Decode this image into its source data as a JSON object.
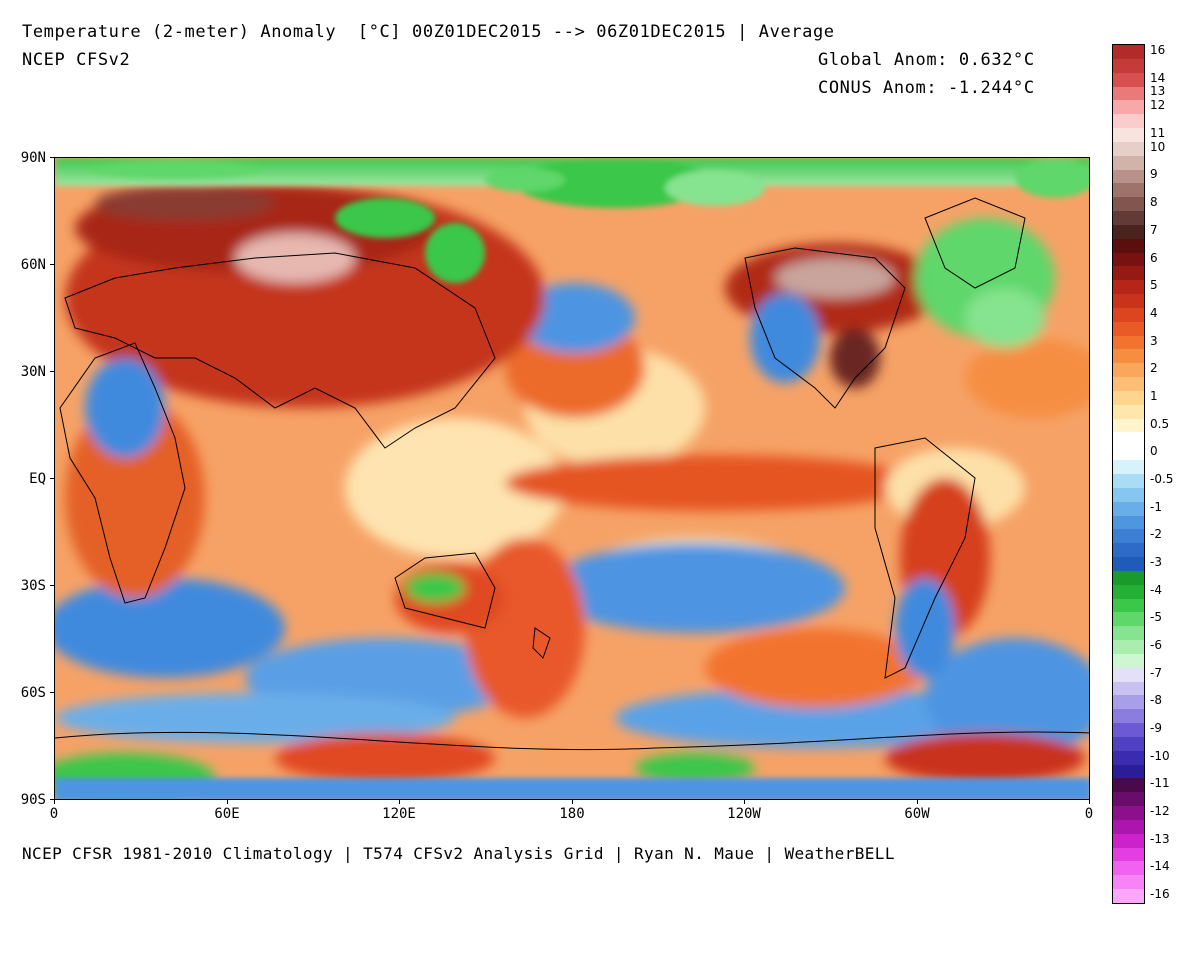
{
  "header": {
    "title": "Temperature (2-meter) Anomaly  [°C] 00Z01DEC2015 --> 06Z01DEC2015 | Average",
    "model": "NCEP CFSv2",
    "global_anom": "Global Anom: 0.632°C",
    "conus_anom": "CONUS Anom: -1.244°C"
  },
  "footer": {
    "credit": "NCEP CFSR 1981-2010 Climatology | T574 CFSv2 Analysis Grid | Ryan N. Maue | WeatherBELL"
  },
  "axes": {
    "lat_labels": [
      "90N",
      "60N",
      "30N",
      "EQ",
      "30S",
      "60S",
      "90S"
    ],
    "lon_labels": [
      "0",
      "60E",
      "120E",
      "180",
      "120W",
      "60W",
      "0"
    ]
  },
  "legend": {
    "boxes": [
      {
        "label": "16",
        "color": "#b32a2a"
      },
      {
        "label": "",
        "color": "#c63a3a"
      },
      {
        "label": "14",
        "color": "#d84f4f"
      },
      {
        "label": "13",
        "color": "#e97a7a"
      },
      {
        "label": "12",
        "color": "#f7a8a8"
      },
      {
        "label": "",
        "color": "#fccccc"
      },
      {
        "label": "11",
        "color": "#f7e4de"
      },
      {
        "label": "10",
        "color": "#e6cfc8"
      },
      {
        "label": "",
        "color": "#d2b3aa"
      },
      {
        "label": "9",
        "color": "#b8918a"
      },
      {
        "label": "",
        "color": "#9e736c"
      },
      {
        "label": "8",
        "color": "#80564f"
      },
      {
        "label": "",
        "color": "#633b36"
      },
      {
        "label": "7",
        "color": "#4a231f"
      },
      {
        "label": "",
        "color": "#5a0f0f"
      },
      {
        "label": "6",
        "color": "#7a1111"
      },
      {
        "label": "",
        "color": "#961a14"
      },
      {
        "label": "5",
        "color": "#b52619"
      },
      {
        "label": "",
        "color": "#c9331c"
      },
      {
        "label": "4",
        "color": "#dd4420"
      },
      {
        "label": "",
        "color": "#ea5a26"
      },
      {
        "label": "3",
        "color": "#f2732e"
      },
      {
        "label": "",
        "color": "#f68e42"
      },
      {
        "label": "2",
        "color": "#f9a85b"
      },
      {
        "label": "",
        "color": "#fbbe75"
      },
      {
        "label": "1",
        "color": "#fdd58f"
      },
      {
        "label": "",
        "color": "#fee7ad"
      },
      {
        "label": "0.5",
        "color": "#fff4cc"
      },
      {
        "label": "",
        "color": "#ffffff"
      },
      {
        "label": "0",
        "color": "#ffffff"
      },
      {
        "label": "",
        "color": "#d8f2fb"
      },
      {
        "label": "-0.5",
        "color": "#a9dcf5"
      },
      {
        "label": "",
        "color": "#87c6f0"
      },
      {
        "label": "-1",
        "color": "#6aaee9"
      },
      {
        "label": "",
        "color": "#4f96e0"
      },
      {
        "label": "-2",
        "color": "#3c7fd5"
      },
      {
        "label": "",
        "color": "#2f6ac8"
      },
      {
        "label": "-3",
        "color": "#1f5bb8"
      },
      {
        "label": "",
        "color": "#199a2a"
      },
      {
        "label": "-4",
        "color": "#24b034"
      },
      {
        "label": "",
        "color": "#3bc74a"
      },
      {
        "label": "-5",
        "color": "#5fd76a"
      },
      {
        "label": "",
        "color": "#86e38f"
      },
      {
        "label": "-6",
        "color": "#aaeeaf"
      },
      {
        "label": "",
        "color": "#cff6d2"
      },
      {
        "label": "-7",
        "color": "#e4e0f7"
      },
      {
        "label": "",
        "color": "#c9c1f0"
      },
      {
        "label": "-8",
        "color": "#a99ee8"
      },
      {
        "label": "",
        "color": "#8a7ddf"
      },
      {
        "label": "-9",
        "color": "#6b5ad4"
      },
      {
        "label": "",
        "color": "#5040c4"
      },
      {
        "label": "-10",
        "color": "#3a2bb0"
      },
      {
        "label": "",
        "color": "#2a1d98"
      },
      {
        "label": "-11",
        "color": "#4a0a4a"
      },
      {
        "label": "",
        "color": "#6a0d6a"
      },
      {
        "label": "-12",
        "color": "#8c108c"
      },
      {
        "label": "",
        "color": "#ad16ad"
      },
      {
        "label": "-13",
        "color": "#cc22cc"
      },
      {
        "label": "",
        "color": "#e23ee2"
      },
      {
        "label": "-14",
        "color": "#f062f0"
      },
      {
        "label": "",
        "color": "#f784f7"
      },
      {
        "label": "-16",
        "color": "#fba8fb"
      }
    ]
  }
}
